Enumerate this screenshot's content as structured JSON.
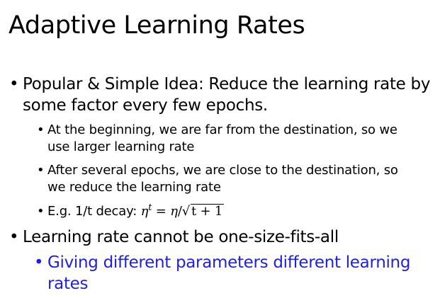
{
  "slide": {
    "title": "Adaptive Learning Rates",
    "bullets": [
      {
        "lines": [
          "Popular & Simple Idea: Reduce the learning rate by",
          "some factor every few epochs."
        ],
        "children": [
          {
            "lines": [
              "At the beginning, we are far from the destination, so we",
              "use larger learning rate"
            ]
          },
          {
            "lines": [
              "After several epochs, we are close to the destination, so",
              "we reduce the learning rate"
            ]
          },
          {
            "prefix": "E.g. 1/t decay:",
            "formula": {
              "eta": "η",
              "t_sup": "t",
              "equals": "=",
              "eta2": "η",
              "slash": "/",
              "radical": "√",
              "radicand": "t + 1"
            }
          }
        ]
      },
      {
        "lines": [
          "Learning rate cannot be one-size-fits-all"
        ],
        "children": [
          {
            "lines": [
              "Giving different parameters different learning",
              "rates"
            ],
            "color": "#1f1fe0"
          }
        ]
      }
    ],
    "bullet_glyph": "•"
  }
}
